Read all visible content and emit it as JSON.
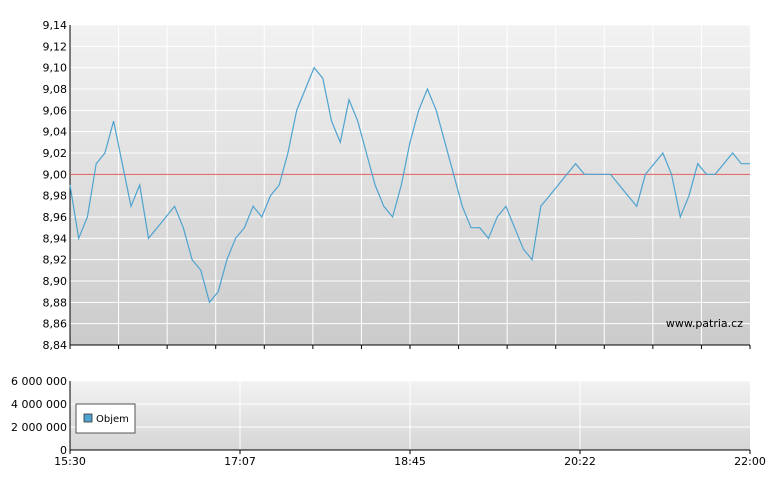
{
  "chart_data": [
    {
      "type": "line",
      "title": "",
      "xlabel": "",
      "ylabel": "",
      "ylim": [
        8.84,
        9.14
      ],
      "y_ticks": [
        "9,14",
        "9,12",
        "9,10",
        "9,08",
        "9,06",
        "9,04",
        "9,02",
        "9,00",
        "8,98",
        "8,96",
        "8,94",
        "8,92",
        "8,90",
        "8,88",
        "8,86",
        "8,84"
      ],
      "x_ticks": [
        "15:30",
        "17:07",
        "18:45",
        "20:22",
        "22:00"
      ],
      "x_range": [
        "15:30",
        "22:00"
      ],
      "reference_line": 9.0,
      "grid": true,
      "series": [
        {
          "color": "#4fa3cf",
          "x": [
            "15:30",
            "15:35",
            "15:40",
            "15:45",
            "15:50",
            "15:55",
            "16:00",
            "16:05",
            "16:10",
            "16:15",
            "16:20",
            "16:25",
            "16:30",
            "16:35",
            "16:40",
            "16:45",
            "16:50",
            "16:55",
            "17:00",
            "17:05",
            "17:10",
            "17:15",
            "17:20",
            "17:25",
            "17:30",
            "17:35",
            "17:40",
            "17:45",
            "17:50",
            "17:55",
            "18:00",
            "18:05",
            "18:10",
            "18:15",
            "18:20",
            "18:25",
            "18:30",
            "18:35",
            "18:40",
            "18:45",
            "18:50",
            "18:55",
            "19:00",
            "19:05",
            "19:10",
            "19:15",
            "19:20",
            "19:25",
            "19:30",
            "19:35",
            "19:40",
            "19:45",
            "19:50",
            "19:55",
            "20:00",
            "20:05",
            "20:10",
            "20:15",
            "20:20",
            "20:25",
            "20:30",
            "20:35",
            "20:40",
            "20:45",
            "20:50",
            "20:55",
            "21:00",
            "21:05",
            "21:10",
            "21:15",
            "21:20",
            "21:25",
            "21:30",
            "21:35",
            "21:40",
            "21:45",
            "21:50",
            "21:55",
            "22:00"
          ],
          "values": [
            8.99,
            8.94,
            8.96,
            9.01,
            9.02,
            9.05,
            9.01,
            8.97,
            8.99,
            8.94,
            8.95,
            8.96,
            8.97,
            8.95,
            8.92,
            8.91,
            8.88,
            8.89,
            8.92,
            8.94,
            8.95,
            8.97,
            8.96,
            8.98,
            8.99,
            9.02,
            9.06,
            9.08,
            9.1,
            9.09,
            9.05,
            9.03,
            9.07,
            9.05,
            9.02,
            8.99,
            8.97,
            8.96,
            8.99,
            9.03,
            9.06,
            9.08,
            9.06,
            9.03,
            9.0,
            8.97,
            8.95,
            8.95,
            8.94,
            8.96,
            8.97,
            8.95,
            8.93,
            8.92,
            8.97,
            8.98,
            8.99,
            9.0,
            9.01,
            9.0,
            9.0,
            9.0,
            9.0,
            8.99,
            8.98,
            8.97,
            9.0,
            9.01,
            9.02,
            9.0,
            8.96,
            8.98,
            9.01,
            9.0,
            9.0,
            9.01,
            9.02,
            9.01,
            9.01
          ]
        }
      ]
    },
    {
      "type": "bar",
      "title": "",
      "ylim": [
        0,
        6000000
      ],
      "y_ticks": [
        "6 000 000",
        "4 000 000",
        "2 000 000",
        "0"
      ],
      "x_ticks": [
        "15:30",
        "17:07",
        "18:45",
        "20:22",
        "22:00"
      ],
      "grid": true,
      "legend_position": "left",
      "series": [
        {
          "name": "Objem",
          "color": "#4fa3cf",
          "values": []
        }
      ]
    }
  ],
  "watermark": "www.patria.cz",
  "colors": {
    "price_line": "#4fa3cf",
    "reference_line": "#e05a5a",
    "grid": "#ffffff",
    "plot_top": "#f2f2f2",
    "plot_bottom": "#cccccc"
  }
}
